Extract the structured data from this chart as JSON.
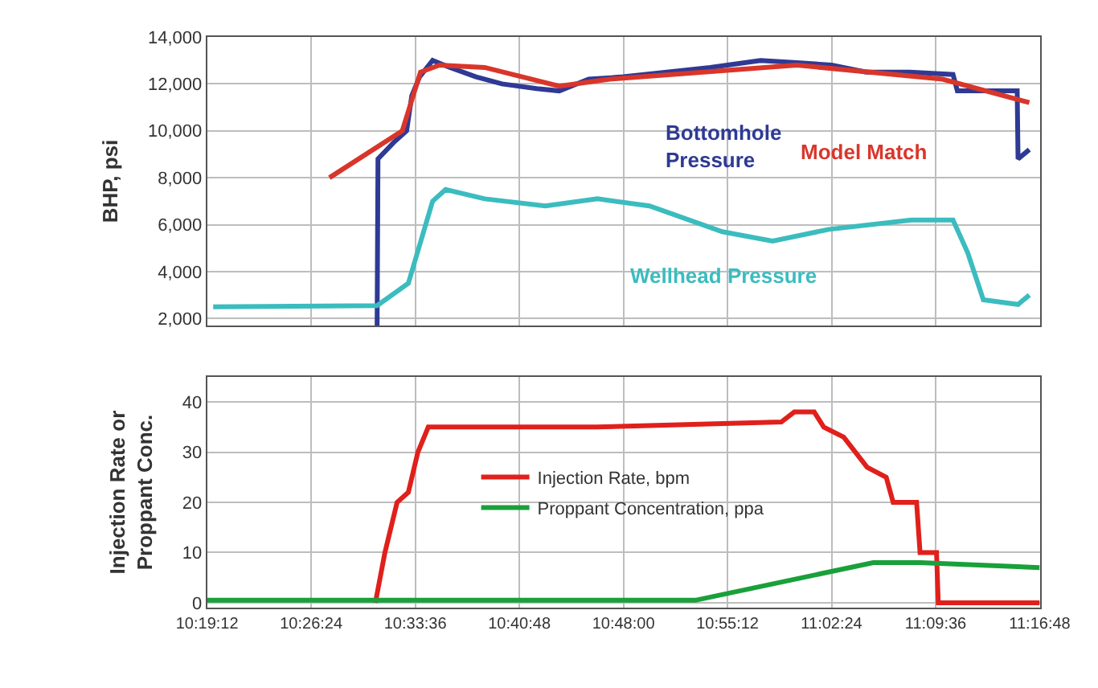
{
  "chart_data": [
    {
      "type": "line",
      "ylabel": "BHP, psi",
      "xlim": [
        10.32,
        11.28
      ],
      "ylim": [
        1700,
        14000
      ],
      "xticks": [
        {
          "value": 10.32,
          "label": null
        },
        {
          "value": 10.44,
          "label": null
        },
        {
          "value": 10.56,
          "label": null
        },
        {
          "value": 10.68,
          "label": null
        },
        {
          "value": 10.8,
          "label": null
        },
        {
          "value": 10.92,
          "label": null
        },
        {
          "value": 11.04,
          "label": null
        },
        {
          "value": 11.16,
          "label": null
        },
        {
          "value": 11.28,
          "label": null
        }
      ],
      "yticks": [
        {
          "value": 2000,
          "label": "2,000"
        },
        {
          "value": 4000,
          "label": "4,000"
        },
        {
          "value": 6000,
          "label": "6,000"
        },
        {
          "value": 8000,
          "label": "8,000"
        },
        {
          "value": 10000,
          "label": "10,000"
        },
        {
          "value": 12000,
          "label": "12,000"
        },
        {
          "value": 14000,
          "label": "14,000"
        }
      ],
      "tick_labels": "y",
      "grid": true,
      "legend": false,
      "marker": "none",
      "series": [
        {
          "name": "Bottomhole Pressure",
          "color": "#2e3a94",
          "x": [
            10.516,
            10.517,
            10.535,
            10.55,
            10.556,
            10.565,
            10.58,
            10.6,
            10.63,
            10.66,
            10.7,
            10.726,
            10.76,
            10.8,
            10.85,
            10.9,
            10.958,
            11.0,
            11.04,
            11.08,
            11.13,
            11.18,
            11.185,
            11.254,
            11.255,
            11.268
          ],
          "values": [
            1700,
            8800,
            9500,
            10000,
            11500,
            12300,
            13000,
            12700,
            12300,
            12000,
            11800,
            11700,
            12200,
            12300,
            12500,
            12700,
            13000,
            12900,
            12800,
            12500,
            12500,
            12400,
            11700,
            11700,
            8800,
            9200
          ]
        },
        {
          "name": "Model Match",
          "color": "#d9362b",
          "x": [
            10.461,
            10.545,
            10.566,
            10.588,
            10.64,
            10.726,
            10.784,
            10.929,
            11.0,
            11.168,
            11.268
          ],
          "values": [
            8000,
            10000,
            12500,
            12800,
            12700,
            11900,
            12200,
            12600,
            12800,
            12200,
            11200
          ]
        },
        {
          "name": "Wellhead Pressure",
          "color": "#3bbcbf",
          "x": [
            10.327,
            10.516,
            10.552,
            10.58,
            10.595,
            10.64,
            10.71,
            10.77,
            10.83,
            10.914,
            10.972,
            11.037,
            11.132,
            11.18,
            11.197,
            11.215,
            11.255,
            11.268
          ],
          "values": [
            2500,
            2550,
            3500,
            7000,
            7500,
            7100,
            6800,
            7100,
            6800,
            5700,
            5300,
            5800,
            6200,
            6200,
            4800,
            2800,
            2600,
            3000
          ]
        }
      ]
    },
    {
      "type": "line",
      "ylabel": "Injection Rate or Proppant Conc.",
      "xlim": [
        10.32,
        11.28
      ],
      "ylim": [
        -1,
        45
      ],
      "xticks": [
        {
          "value": 10.32,
          "label": "10:19:12"
        },
        {
          "value": 10.44,
          "label": "10:26:24"
        },
        {
          "value": 10.56,
          "label": "10:33:36"
        },
        {
          "value": 10.68,
          "label": "10:40:48"
        },
        {
          "value": 10.8,
          "label": "10:48:00"
        },
        {
          "value": 10.92,
          "label": "10:55:12"
        },
        {
          "value": 11.04,
          "label": "11:02:24"
        },
        {
          "value": 11.16,
          "label": "11:09:36"
        },
        {
          "value": 11.28,
          "label": "11:16:48"
        }
      ],
      "yticks": [
        0,
        10,
        20,
        30,
        40
      ],
      "grid": true,
      "legend": "center",
      "marker": "none",
      "series": [
        {
          "name": "Injection Rate, bpm",
          "color": "#e0201b",
          "x": [
            10.514,
            10.525,
            10.539,
            10.552,
            10.563,
            10.575,
            10.769,
            10.982,
            10.997,
            11.02,
            11.031,
            11.054,
            11.081,
            11.103,
            11.111,
            11.138,
            11.142,
            11.161,
            11.163,
            11.28
          ],
          "values": [
            0,
            10,
            20,
            22,
            30,
            35,
            35,
            36,
            38,
            38,
            35,
            33,
            27,
            25,
            20,
            20,
            10,
            10,
            0,
            0
          ]
        },
        {
          "name": "Proppant Concentration, ppa",
          "color": "#1aa03a",
          "x": [
            10.32,
            10.883,
            11.088,
            11.142,
            11.28
          ],
          "values": [
            0.5,
            0.5,
            8,
            8,
            7
          ]
        }
      ]
    }
  ]
}
